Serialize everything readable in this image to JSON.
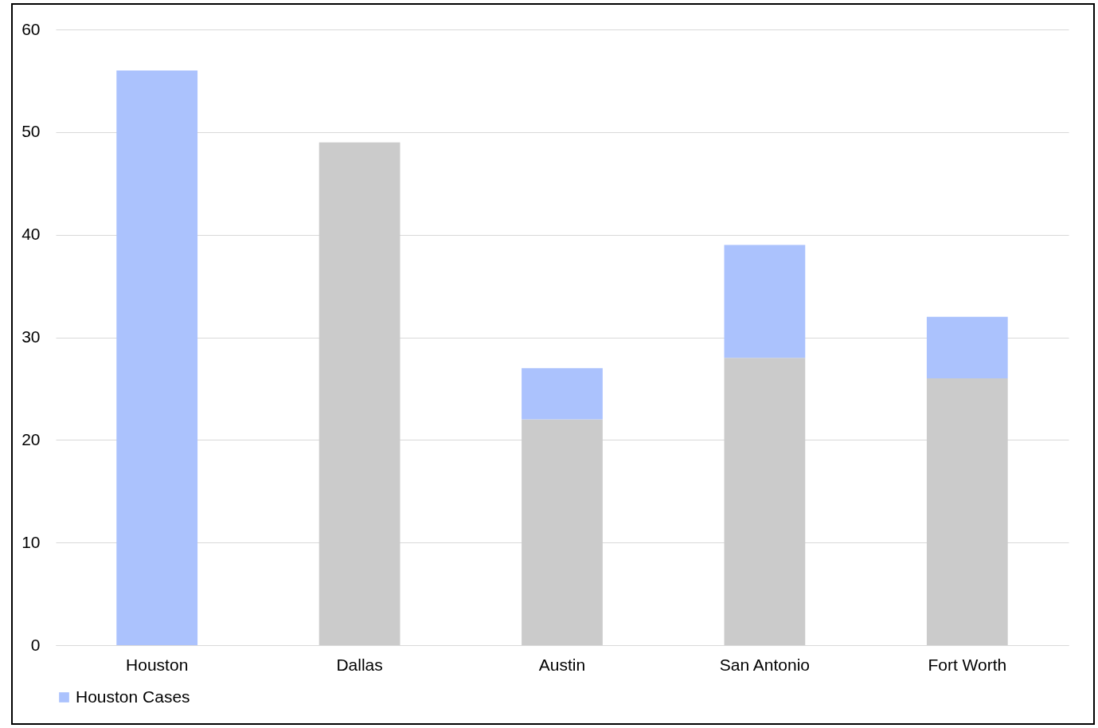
{
  "chart_data": {
    "type": "bar",
    "stacked": true,
    "categories": [
      "Houston",
      "Dallas",
      "Austin",
      "San Antonio",
      "Fort Worth"
    ],
    "series": [
      {
        "color": "#cbcbcb",
        "values": [
          null,
          49,
          22,
          28,
          26
        ]
      },
      {
        "name": "Houston Cases",
        "color": "#abc2fd",
        "values": [
          56,
          null,
          5,
          11,
          6
        ]
      }
    ],
    "ylim": [
      0,
      60
    ],
    "yticks": [
      0,
      10,
      20,
      30,
      40,
      50,
      60
    ],
    "grid": "y",
    "legend": "bottom"
  }
}
